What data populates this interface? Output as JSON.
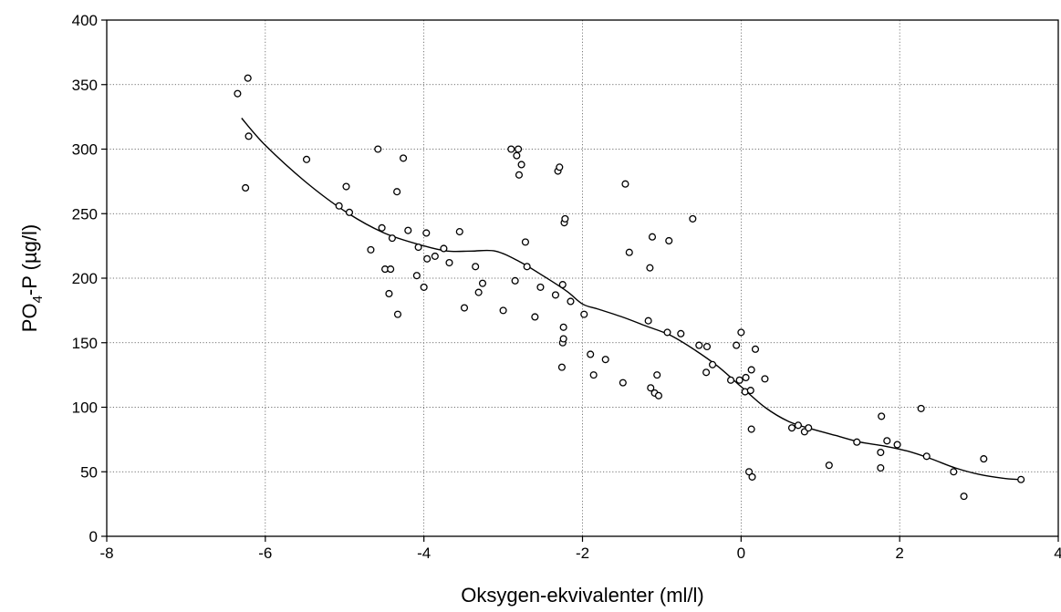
{
  "chart_data": {
    "type": "scatter",
    "xlabel": "Oksygen-ekvivalenter (ml/l)",
    "ylabel": "PO4-P (µg/l)",
    "ylabel_parts": {
      "pre": "PO",
      "sub": "4",
      "post": "-P (µg/l)"
    },
    "xlim": [
      -8,
      4
    ],
    "ylim": [
      0,
      400
    ],
    "x_ticks": [
      -8,
      -6,
      -4,
      -2,
      0,
      2,
      4
    ],
    "y_ticks": [
      0,
      50,
      100,
      150,
      200,
      250,
      300,
      350,
      400
    ],
    "x_tick_labels": [
      "-8",
      "-6",
      "-4",
      "-2",
      "0",
      "2",
      "4"
    ],
    "y_tick_labels": [
      "0",
      "50",
      "100",
      "150",
      "200",
      "250",
      "300",
      "350",
      "400"
    ],
    "grid": true,
    "series": [
      {
        "marker": "open-circle",
        "points": [
          [
            -6.35,
            343
          ],
          [
            -6.25,
            270
          ],
          [
            -6.22,
            355
          ],
          [
            -6.21,
            310
          ],
          [
            -5.48,
            292
          ],
          [
            -5.07,
            256
          ],
          [
            -4.98,
            271
          ],
          [
            -4.94,
            251
          ],
          [
            -4.67,
            222
          ],
          [
            -4.58,
            300
          ],
          [
            -4.53,
            239
          ],
          [
            -4.49,
            207
          ],
          [
            -4.44,
            188
          ],
          [
            -4.42,
            207
          ],
          [
            -4.4,
            231
          ],
          [
            -4.34,
            267
          ],
          [
            -4.33,
            172
          ],
          [
            -4.26,
            293
          ],
          [
            -4.2,
            237
          ],
          [
            -4.09,
            202
          ],
          [
            -4.07,
            224
          ],
          [
            -4.0,
            193
          ],
          [
            -3.97,
            235
          ],
          [
            -3.96,
            215
          ],
          [
            -3.86,
            217
          ],
          [
            -3.75,
            223
          ],
          [
            -3.68,
            212
          ],
          [
            -3.55,
            236
          ],
          [
            -3.49,
            177
          ],
          [
            -3.35,
            209
          ],
          [
            -3.31,
            189
          ],
          [
            -3.26,
            196
          ],
          [
            -3.0,
            175
          ],
          [
            -2.9,
            300
          ],
          [
            -2.85,
            198
          ],
          [
            -2.83,
            295
          ],
          [
            -2.81,
            300
          ],
          [
            -2.8,
            280
          ],
          [
            -2.77,
            288
          ],
          [
            -2.72,
            228
          ],
          [
            -2.7,
            209
          ],
          [
            -2.6,
            170
          ],
          [
            -2.53,
            193
          ],
          [
            -2.34,
            187
          ],
          [
            -2.31,
            283
          ],
          [
            -2.29,
            286
          ],
          [
            -2.26,
            131
          ],
          [
            -2.25,
            150
          ],
          [
            -2.25,
            195
          ],
          [
            -2.24,
            153
          ],
          [
            -2.24,
            162
          ],
          [
            -2.23,
            243
          ],
          [
            -2.22,
            246
          ],
          [
            -2.15,
            182
          ],
          [
            -1.98,
            172
          ],
          [
            -1.9,
            141
          ],
          [
            -1.86,
            125
          ],
          [
            -1.71,
            137
          ],
          [
            -1.49,
            119
          ],
          [
            -1.46,
            273
          ],
          [
            -1.41,
            220
          ],
          [
            -1.17,
            167
          ],
          [
            -1.15,
            208
          ],
          [
            -1.14,
            115
          ],
          [
            -1.12,
            232
          ],
          [
            -1.09,
            111
          ],
          [
            -1.06,
            125
          ],
          [
            -1.04,
            109
          ],
          [
            -0.93,
            158
          ],
          [
            -0.91,
            229
          ],
          [
            -0.76,
            157
          ],
          [
            -0.61,
            246
          ],
          [
            -0.53,
            148
          ],
          [
            -0.44,
            127
          ],
          [
            -0.43,
            147
          ],
          [
            -0.36,
            133
          ],
          [
            -0.13,
            121
          ],
          [
            -0.06,
            148
          ],
          [
            -0.02,
            121
          ],
          [
            0.0,
            158
          ],
          [
            0.05,
            112
          ],
          [
            0.06,
            123
          ],
          [
            0.1,
            50
          ],
          [
            0.12,
            113
          ],
          [
            0.13,
            129
          ],
          [
            0.13,
            83
          ],
          [
            0.14,
            46
          ],
          [
            0.18,
            145
          ],
          [
            0.3,
            122
          ],
          [
            0.64,
            84
          ],
          [
            0.72,
            86
          ],
          [
            0.8,
            81
          ],
          [
            0.85,
            84
          ],
          [
            1.11,
            55
          ],
          [
            1.46,
            73
          ],
          [
            1.76,
            65
          ],
          [
            1.76,
            53
          ],
          [
            1.77,
            93
          ],
          [
            1.84,
            74
          ],
          [
            1.97,
            71
          ],
          [
            2.27,
            99
          ],
          [
            2.34,
            62
          ],
          [
            2.68,
            50
          ],
          [
            2.81,
            31
          ],
          [
            3.06,
            60
          ],
          [
            3.53,
            44
          ]
        ]
      }
    ],
    "fit_line": {
      "x": [
        -6.3,
        -6.0,
        -5.5,
        -5.0,
        -4.5,
        -4.0,
        -3.7,
        -3.4,
        -3.1,
        -2.8,
        -2.5,
        -2.2,
        -2.0,
        -1.8,
        -1.5,
        -1.2,
        -0.9,
        -0.6,
        -0.3,
        0.0,
        0.3,
        0.6,
        0.9,
        1.2,
        1.5,
        1.8,
        2.1,
        2.4,
        2.7,
        3.0,
        3.3,
        3.5
      ],
      "y": [
        324,
        303,
        275,
        252,
        235,
        225,
        221,
        221,
        221,
        213,
        202,
        190,
        180,
        176,
        170,
        163,
        156,
        145,
        132,
        116,
        100,
        89,
        83,
        78,
        73,
        70,
        66,
        60,
        53,
        48,
        45,
        44
      ]
    }
  }
}
